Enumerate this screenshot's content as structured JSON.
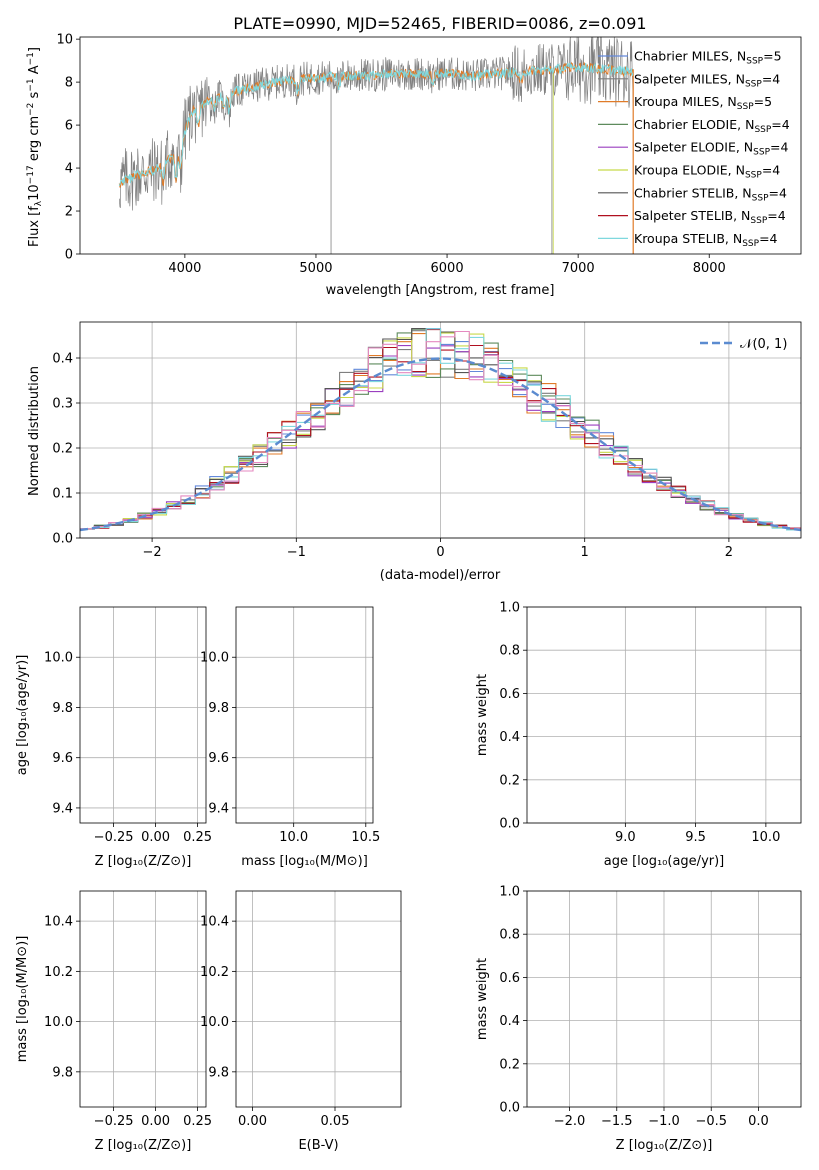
{
  "colors": {
    "Chabrier MILES": "#6389d9",
    "Salpeter MILES": "#7f7f7f",
    "Kroupa MILES": "#e07b28",
    "Chabrier ELODIE": "#5e8b5c",
    "Salpeter ELODIE": "#9a3fbf",
    "Kroupa ELODIE": "#c8d94a",
    "Chabrier STELIB": "#555555",
    "Salpeter STELIB": "#b01020",
    "Kroupa STELIB": "#7fd8de",
    "pink": "#e58ac0",
    "gauss": "#5b8bd0"
  },
  "chart_data": [
    {
      "type": "line",
      "title": "PLATE=0990, MJD=52465, FIBERID=0086, z=0.091",
      "xlabel": "wavelength [Angstrom, rest frame]",
      "ylabel": "Flux [fλ10⁻¹⁷ erg cm⁻² s⁻¹ A⁻¹]",
      "xlim": [
        3200,
        8700
      ],
      "ylim": [
        0,
        10.1
      ],
      "xticks": [
        "4000",
        "5000",
        "6000",
        "7000",
        "8000"
      ],
      "yticks": [
        "0",
        "2",
        "4",
        "6",
        "8",
        "10"
      ],
      "legend_position": "top-right",
      "legend": [
        {
          "label": "Chabrier MILES, N",
          "sub": "SSP",
          "tail": "=5"
        },
        {
          "label": "Salpeter MILES, N",
          "sub": "SSP",
          "tail": "=4"
        },
        {
          "label": "Kroupa MILES, N",
          "sub": "SSP",
          "tail": "=5"
        },
        {
          "label": "Chabrier ELODIE, N",
          "sub": "SSP",
          "tail": "=4"
        },
        {
          "label": "Salpeter ELODIE, N",
          "sub": "SSP",
          "tail": "=4"
        },
        {
          "label": "Kroupa ELODIE, N",
          "sub": "SSP",
          "tail": "=4"
        },
        {
          "label": "Chabrier STELIB, N",
          "sub": "SSP",
          "tail": "=4"
        },
        {
          "label": "Salpeter STELIB, N",
          "sub": "SSP",
          "tail": "=4"
        },
        {
          "label": "Kroupa STELIB, N",
          "sub": "SSP",
          "tail": "=4"
        }
      ],
      "continuum": {
        "x": [
          3500,
          3650,
          3800,
          3950,
          4050,
          4200,
          4400,
          4600,
          4800,
          5000,
          5200,
          5400,
          5600,
          5800,
          6000,
          6200,
          6400,
          6600,
          6800,
          7000,
          7200,
          7400
        ],
        "y": [
          3.3,
          3.7,
          4.0,
          4.8,
          6.6,
          7.2,
          7.6,
          7.9,
          8.1,
          8.2,
          8.3,
          8.3,
          8.4,
          8.4,
          8.4,
          8.3,
          8.4,
          8.5,
          8.6,
          8.7,
          8.6,
          8.5
        ]
      }
    },
    {
      "type": "bar",
      "xlabel": "(data-model)/error",
      "ylabel": "Normed distribution",
      "xlim": [
        -2.5,
        2.5
      ],
      "ylim": [
        0,
        0.48
      ],
      "xticks": [
        "−2",
        "−1",
        "0",
        "1",
        "2"
      ],
      "yticks": [
        "0.0",
        "0.1",
        "0.2",
        "0.3",
        "0.4"
      ],
      "legend_position": "top-right",
      "gauss_label": "𝒩(0, 1)",
      "bin_width": 0.1
    },
    {
      "type": "scatter",
      "xlabel": "Z [log₁₀(Z/Z⊙)]",
      "ylabel": "age  [log₁₀(age/yr)]",
      "xlim": [
        -0.45,
        0.3
      ],
      "ylim": [
        9.34,
        10.2
      ],
      "xticks": [
        "−0.25",
        "0.00",
        "0.25"
      ],
      "yticks": [
        "9.4",
        "9.6",
        "9.8",
        "10.0"
      ]
    },
    {
      "type": "scatter",
      "xlabel": "mass [log₁₀(M/M⊙)]",
      "xlim": [
        9.6,
        10.55
      ],
      "ylim": [
        9.34,
        10.2
      ],
      "xticks": [
        "10.0",
        "10.5"
      ],
      "yticks": [
        "9.4",
        "9.6",
        "9.8",
        "10.0"
      ]
    },
    {
      "type": "line",
      "xlabel": "age  [log₁₀(age/yr)]",
      "ylabel": "mass weight",
      "xlim": [
        8.3,
        10.25
      ],
      "ylim": [
        0,
        1.0
      ],
      "xticks": [
        "9.0",
        "9.5",
        "10.0"
      ],
      "yticks": [
        "0.0",
        "0.2",
        "0.4",
        "0.6",
        "0.8",
        "1.0"
      ]
    },
    {
      "type": "scatter",
      "xlabel": "Z [log₁₀(Z/Z⊙)]",
      "ylabel": "mass [log₁₀(M/M⊙)]",
      "xlim": [
        -0.45,
        0.3
      ],
      "ylim": [
        9.66,
        10.52
      ],
      "xticks": [
        "−0.25",
        "0.00",
        "0.25"
      ],
      "yticks": [
        "9.8",
        "10.0",
        "10.2",
        "10.4"
      ]
    },
    {
      "type": "scatter",
      "xlabel": "E(B-V)",
      "xlim": [
        -0.01,
        0.09
      ],
      "ylim": [
        9.66,
        10.52
      ],
      "xticks": [
        "0.00",
        "0.05"
      ],
      "yticks": [
        "9.8",
        "10.0",
        "10.2",
        "10.4"
      ]
    },
    {
      "type": "line",
      "xlabel": "Z [log₁₀(Z/Z⊙)]",
      "ylabel": "mass weight",
      "xlim": [
        -2.45,
        0.45
      ],
      "ylim": [
        0,
        1.0
      ],
      "xticks": [
        "−2.0",
        "−1.5",
        "−1.0",
        "−0.5",
        "0.0"
      ],
      "yticks": [
        "0.0",
        "0.2",
        "0.4",
        "0.6",
        "0.8",
        "1.0"
      ]
    }
  ]
}
